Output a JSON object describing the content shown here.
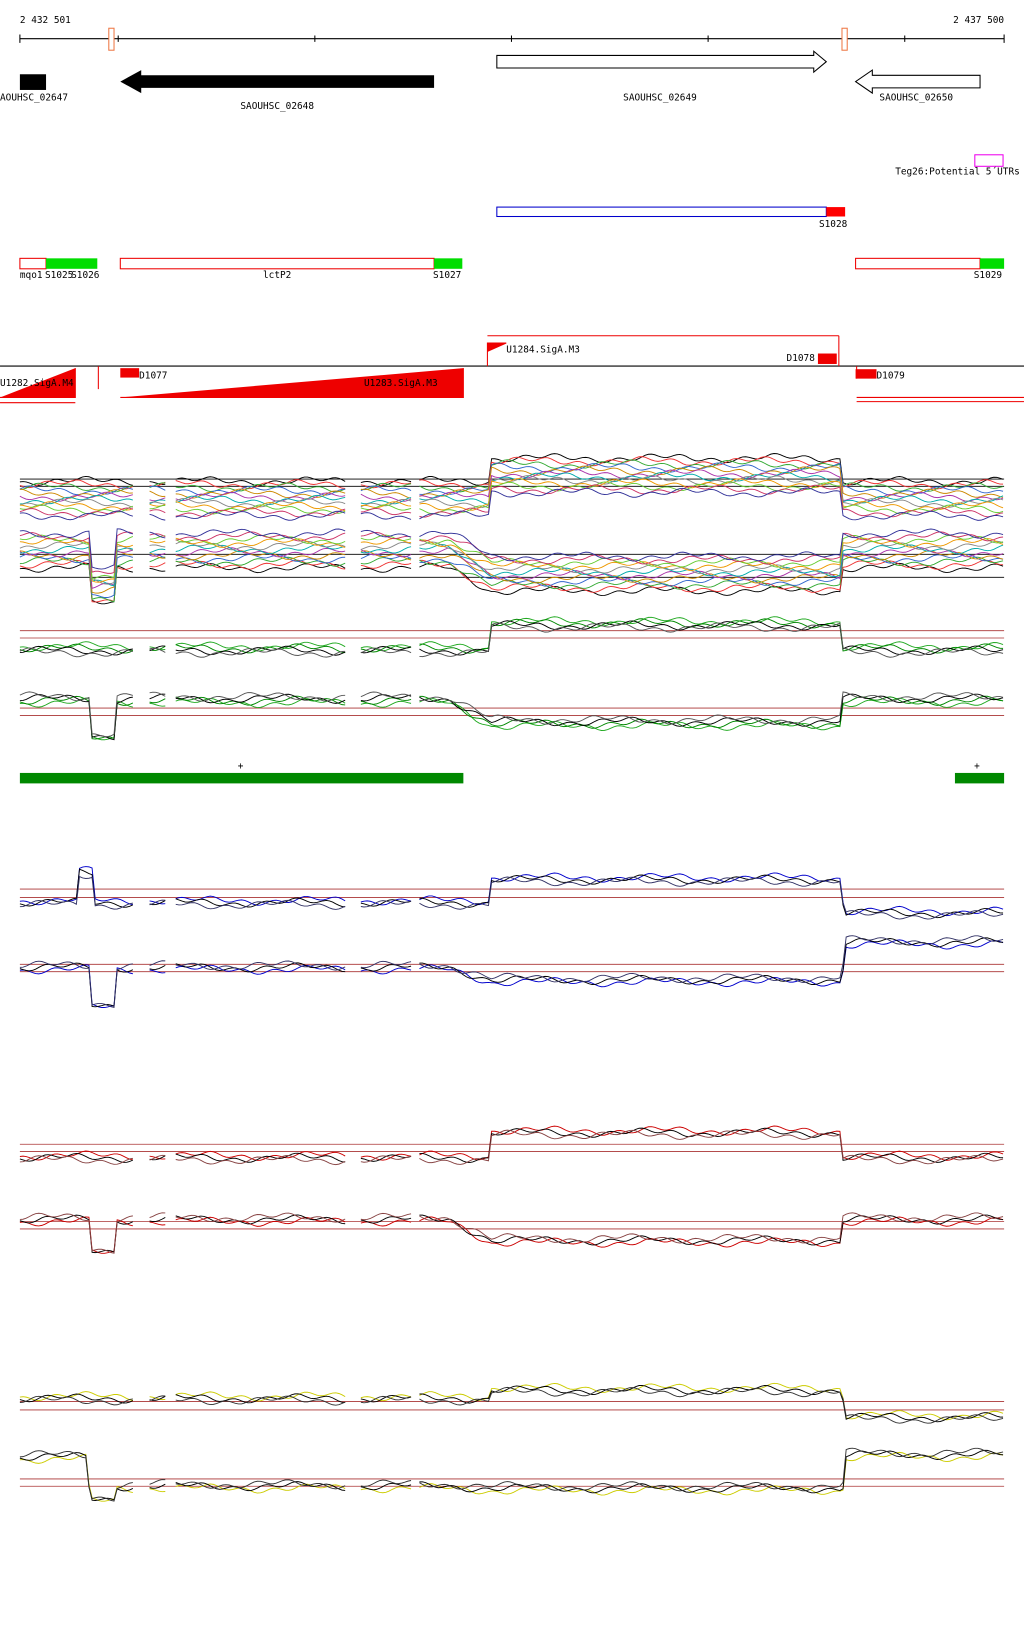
{
  "ruler": {
    "start": "2 432 501",
    "end": "2 437 500"
  },
  "genes": [
    {
      "label": "AOUHSC_02647"
    },
    {
      "label": "SAOUHSC_02648"
    },
    {
      "label": "SAOUHSC_02649"
    },
    {
      "label": "SAOUHSC_02650"
    }
  ],
  "utr_track": {
    "label": "Teg26:Potential 5´UTRs"
  },
  "blue_feature": {
    "label": "S1028"
  },
  "operons": [
    {
      "label": "mqo1"
    },
    {
      "label": "S1025"
    },
    {
      "label": "S1026"
    },
    {
      "label": "lctP2"
    },
    {
      "label": "S1027"
    },
    {
      "label": "S1029"
    }
  ],
  "promoters": [
    {
      "label": "U1284.SigA.M3"
    },
    {
      "label": "D1078"
    },
    {
      "label": "D1077"
    },
    {
      "label": "D1079"
    },
    {
      "label": "U1283.SigA.M3"
    },
    {
      "label": "U1282.SigA.M4"
    }
  ],
  "strand_marks": [
    "+",
    "+"
  ]
}
